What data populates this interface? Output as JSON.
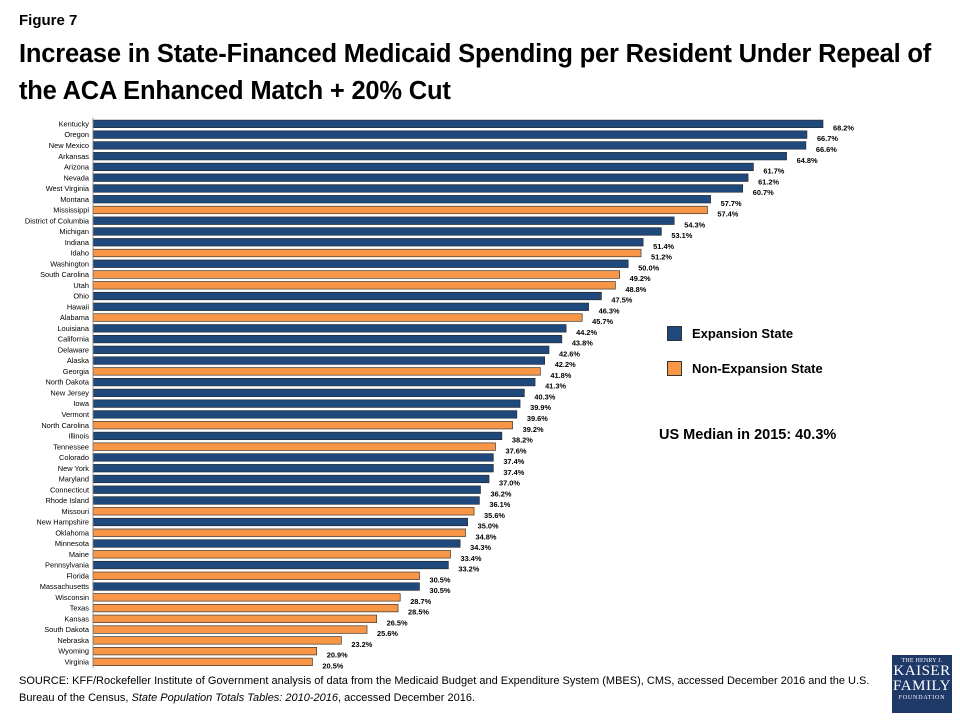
{
  "figure_label": "Figure 7",
  "title": "Increase in State-Financed Medicaid Spending per Resident Under Repeal of the ACA Enhanced Match + 20% Cut",
  "legend": {
    "expansion_label": "Expansion State",
    "non_expansion_label": "Non-Expansion State"
  },
  "colors": {
    "expansion": "#1f497d",
    "non_expansion": "#f79646"
  },
  "median_note": "US Median in 2015: 40.3%",
  "source": {
    "prefix": "SOURCE:  KFF/Rockefeller Institute of Government  analysis of data from the  Medicaid Budget and Expenditure System (MBES), CMS, accessed December  2016 and the U.S.  Bureau of the Census, ",
    "italic": "State Population Totals Tables: 2010-2016",
    "suffix": ", accessed December  2016."
  },
  "logo": {
    "line1": "THE HENRY J.",
    "line2": "KAISER",
    "line3": "FAMILY",
    "line4": "FOUNDATION"
  },
  "chart_data": {
    "type": "bar",
    "orientation": "horizontal",
    "title": "Increase in State-Financed Medicaid Spending per Resident Under Repeal of the ACA Enhanced Match + 20% Cut",
    "value_format": "percent_1dp",
    "xlim": [
      0,
      100
    ],
    "grid": false,
    "legend_position": "right",
    "series": [
      {
        "name": "Expansion State",
        "color": "#1f497d"
      },
      {
        "name": "Non-Expansion State",
        "color": "#f79646"
      }
    ],
    "categories": [
      "Kentucky",
      "Oregon",
      "New Mexico",
      "Arkansas",
      "Arizona",
      "Nevada",
      "West Virginia",
      "Montana",
      "Mississippi",
      "District of Columbia",
      "Michigan",
      "Indiana",
      "Idaho",
      "Washington",
      "South Carolina",
      "Utah",
      "Ohio",
      "Hawaii",
      "Alabama",
      "Louisiana",
      "California",
      "Delaware",
      "Alaska",
      "Georgia",
      "North Dakota",
      "New Jersey",
      "Iowa",
      "Vermont",
      "North Carolina",
      "Illinois",
      "Tennessee",
      "Colorado",
      "New York",
      "Maryland",
      "Connecticut",
      "Rhode Island",
      "Missouri",
      "New Hampshire",
      "Oklahoma",
      "Minnesota",
      "Maine",
      "Pennsylvania",
      "Florida",
      "Massachusetts",
      "Wisconsin",
      "Texas",
      "Kansas",
      "South Dakota",
      "Nebraska",
      "Wyoming",
      "Virginia"
    ],
    "values": [
      68.2,
      66.7,
      66.6,
      64.8,
      61.7,
      61.2,
      60.7,
      57.7,
      57.4,
      54.3,
      53.1,
      51.4,
      51.2,
      50.0,
      49.2,
      48.8,
      47.5,
      46.3,
      45.7,
      44.2,
      43.8,
      42.6,
      42.2,
      41.8,
      41.3,
      40.3,
      39.9,
      39.6,
      39.2,
      38.2,
      37.6,
      37.4,
      37.4,
      37.0,
      36.2,
      36.1,
      35.6,
      35.0,
      34.8,
      34.3,
      33.4,
      33.2,
      30.5,
      30.5,
      28.7,
      28.5,
      26.5,
      25.6,
      23.2,
      20.9,
      20.5
    ],
    "value_labels": [
      "68.2%",
      "66.7%",
      "66.6%",
      "64.8%",
      "61.7%",
      "61.2%",
      "60.7%",
      "57.7%",
      "57.4%",
      "54.3%",
      "53.1%",
      "51.4%",
      "51.2%",
      "50.0%",
      "49.2%",
      "48.8%",
      "47.5%",
      "46.3%",
      "45.7%",
      "44.2%",
      "43.8%",
      "42.6%",
      "42.2%",
      "41.8%",
      "41.3%",
      "40.3%",
      "39.9%",
      "39.6%",
      "39.2%",
      "38.2%",
      "37.6%",
      "37.4%",
      "37.4%",
      "37.0%",
      "36.2%",
      "36.1%",
      "35.6%",
      "35.0%",
      "34.8%",
      "34.3%",
      "33.4%",
      "33.2%",
      "30.5%",
      "30.5%",
      "28.7%",
      "28.5%",
      "26.5%",
      "25.6%",
      "23.2%",
      "20.9%",
      "20.5%"
    ],
    "group": [
      "Expansion State",
      "Expansion State",
      "Expansion State",
      "Expansion State",
      "Expansion State",
      "Expansion State",
      "Expansion State",
      "Expansion State",
      "Non-Expansion State",
      "Expansion State",
      "Expansion State",
      "Expansion State",
      "Non-Expansion State",
      "Expansion State",
      "Non-Expansion State",
      "Non-Expansion State",
      "Expansion State",
      "Expansion State",
      "Non-Expansion State",
      "Expansion State",
      "Expansion State",
      "Expansion State",
      "Expansion State",
      "Non-Expansion State",
      "Expansion State",
      "Expansion State",
      "Expansion State",
      "Expansion State",
      "Non-Expansion State",
      "Expansion State",
      "Non-Expansion State",
      "Expansion State",
      "Expansion State",
      "Expansion State",
      "Expansion State",
      "Expansion State",
      "Non-Expansion State",
      "Expansion State",
      "Non-Expansion State",
      "Expansion State",
      "Non-Expansion State",
      "Expansion State",
      "Non-Expansion State",
      "Expansion State",
      "Non-Expansion State",
      "Non-Expansion State",
      "Non-Expansion State",
      "Non-Expansion State",
      "Non-Expansion State",
      "Non-Expansion State",
      "Non-Expansion State"
    ]
  }
}
